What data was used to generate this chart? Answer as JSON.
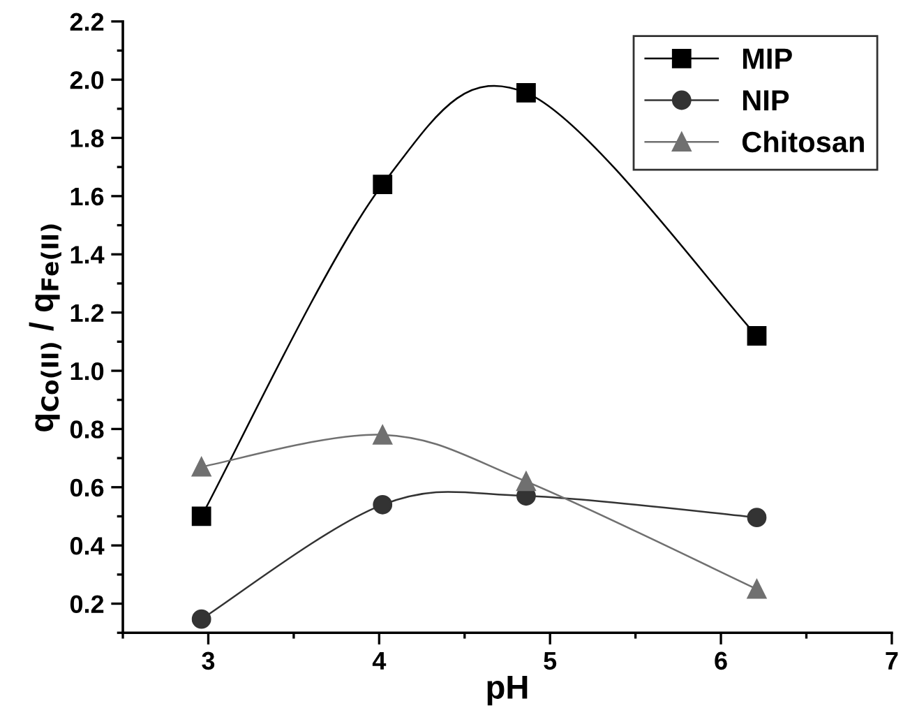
{
  "chart_data": {
    "type": "line",
    "xlabel": "pH",
    "ylabel": "q$_{Co(II)}$ / q$_{Fe(II)}$",
    "xlim": [
      2.5,
      7
    ],
    "xticks": [
      3,
      4,
      5,
      6,
      7
    ],
    "ylim": [
      0.1,
      2.2
    ],
    "yticks": [
      0.2,
      0.4,
      0.6,
      0.8,
      {
        "value": 1,
        "label": "1.0"
      },
      1.2,
      1.4,
      1.6,
      1.8,
      {
        "value": 2,
        "label": "2.0"
      },
      2.2
    ],
    "grid": false,
    "legend": "top right",
    "series": [
      {
        "name": "MIP",
        "color": "#000000",
        "marker": "square",
        "x": [
          2.96,
          4.02,
          4.86,
          6.21
        ],
        "values": [
          0.5,
          1.64,
          1.955,
          1.12
        ]
      },
      {
        "name": "NIP",
        "color": "#333333",
        "marker": "circle",
        "x": [
          2.96,
          4.02,
          4.86,
          6.21
        ],
        "values": [
          0.147,
          0.54,
          0.57,
          0.496
        ]
      },
      {
        "name": "Chitosan",
        "color": "#707070",
        "marker": "triangle",
        "x": [
          2.96,
          4.02,
          4.86,
          6.21
        ],
        "values": [
          0.67,
          0.78,
          0.62,
          0.25
        ]
      }
    ]
  }
}
